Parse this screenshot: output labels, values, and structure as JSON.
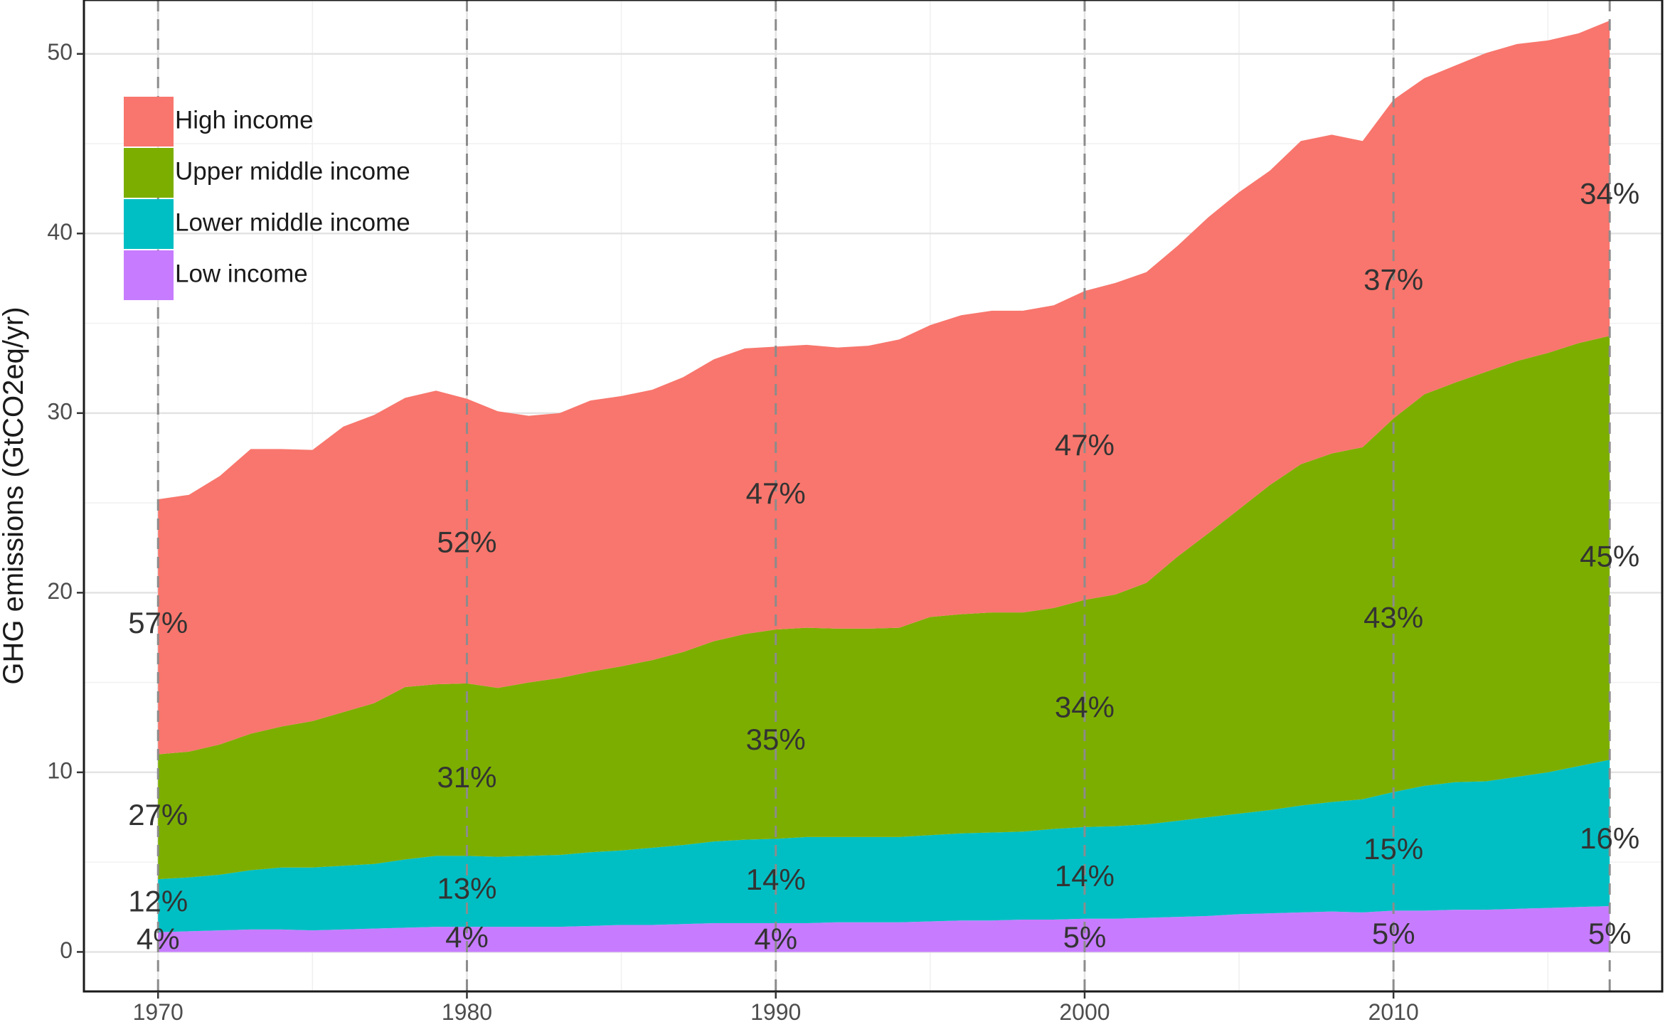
{
  "chart_data": {
    "type": "area",
    "stacked": true,
    "ylabel": "GHG emissions (GtCO2eq/yr)",
    "xlabel": "",
    "xlim": [
      1967.6,
      2018.7
    ],
    "ylim": [
      -2.2,
      53
    ],
    "x_ticks": [
      1970,
      1980,
      1990,
      2000,
      2010
    ],
    "y_ticks": [
      0,
      10,
      20,
      30,
      40,
      50
    ],
    "grid": true,
    "legend_position": "top-left",
    "x": [
      1970,
      1971,
      1972,
      1973,
      1974,
      1975,
      1976,
      1977,
      1978,
      1979,
      1980,
      1981,
      1982,
      1983,
      1984,
      1985,
      1986,
      1987,
      1988,
      1989,
      1990,
      1991,
      1992,
      1993,
      1994,
      1995,
      1996,
      1997,
      1998,
      1999,
      2000,
      2001,
      2002,
      2003,
      2004,
      2005,
      2006,
      2007,
      2008,
      2009,
      2010,
      2011,
      2012,
      2013,
      2014,
      2015,
      2016,
      2017
    ],
    "series": [
      {
        "name": "Low income",
        "color": "#C77CFF",
        "values": [
          1.1,
          1.15,
          1.2,
          1.25,
          1.25,
          1.2,
          1.25,
          1.3,
          1.35,
          1.4,
          1.4,
          1.4,
          1.4,
          1.4,
          1.45,
          1.5,
          1.5,
          1.55,
          1.6,
          1.6,
          1.6,
          1.6,
          1.65,
          1.65,
          1.65,
          1.7,
          1.75,
          1.75,
          1.8,
          1.8,
          1.85,
          1.85,
          1.9,
          1.95,
          2.0,
          2.1,
          2.15,
          2.2,
          2.25,
          2.2,
          2.3,
          2.3,
          2.35,
          2.35,
          2.4,
          2.45,
          2.5,
          2.55
        ]
      },
      {
        "name": "Lower middle income",
        "color": "#00BFC4",
        "values": [
          2.95,
          3.0,
          3.1,
          3.3,
          3.45,
          3.5,
          3.55,
          3.6,
          3.8,
          3.95,
          3.95,
          3.9,
          3.95,
          4.0,
          4.1,
          4.15,
          4.3,
          4.4,
          4.55,
          4.65,
          4.7,
          4.8,
          4.75,
          4.75,
          4.75,
          4.8,
          4.85,
          4.9,
          4.9,
          5.05,
          5.1,
          5.15,
          5.2,
          5.35,
          5.5,
          5.6,
          5.75,
          5.95,
          6.1,
          6.3,
          6.6,
          6.95,
          7.1,
          7.15,
          7.35,
          7.55,
          7.85,
          8.15
        ]
      },
      {
        "name": "Upper middle income",
        "color": "#7CAE00",
        "values": [
          6.95,
          7.0,
          7.25,
          7.6,
          7.85,
          8.15,
          8.55,
          8.95,
          9.6,
          9.55,
          9.6,
          9.4,
          9.65,
          9.85,
          10.05,
          10.25,
          10.45,
          10.75,
          11.15,
          11.45,
          11.65,
          11.65,
          11.6,
          11.6,
          11.65,
          12.15,
          12.2,
          12.25,
          12.2,
          12.3,
          12.65,
          12.9,
          13.45,
          14.7,
          15.8,
          16.95,
          18.1,
          19.0,
          19.4,
          19.6,
          20.8,
          21.8,
          22.25,
          22.8,
          23.15,
          23.35,
          23.55,
          23.6
        ]
      },
      {
        "name": "High income",
        "color": "#F8766D",
        "values": [
          14.2,
          14.3,
          14.95,
          15.85,
          15.45,
          15.1,
          15.9,
          16.05,
          16.1,
          16.35,
          15.85,
          15.4,
          14.85,
          14.75,
          15.1,
          15.05,
          15.05,
          15.3,
          15.7,
          15.9,
          15.75,
          15.75,
          15.65,
          15.75,
          16.05,
          16.25,
          16.65,
          16.8,
          16.8,
          16.85,
          17.2,
          17.35,
          17.3,
          17.3,
          17.6,
          17.65,
          17.5,
          18.0,
          17.75,
          17.05,
          17.75,
          17.6,
          17.65,
          17.75,
          17.65,
          17.4,
          17.25,
          17.55
        ]
      }
    ],
    "legend": [
      {
        "label": "High income",
        "color": "#F8766D"
      },
      {
        "label": "Upper middle income",
        "color": "#7CAE00"
      },
      {
        "label": "Lower middle income",
        "color": "#00BFC4"
      },
      {
        "label": "Low income",
        "color": "#C77CFF"
      }
    ],
    "marker_years": [
      1970,
      1980,
      1990,
      2000,
      2010,
      2017
    ],
    "annotations": [
      {
        "x": 1970,
        "y": 18.2,
        "text": "57%"
      },
      {
        "x": 1970,
        "y": 7.5,
        "text": "27%"
      },
      {
        "x": 1970,
        "y": 2.7,
        "text": "12%"
      },
      {
        "x": 1970,
        "y": 0.6,
        "text": "4%"
      },
      {
        "x": 1980,
        "y": 22.7,
        "text": "52%"
      },
      {
        "x": 1980,
        "y": 9.6,
        "text": "31%"
      },
      {
        "x": 1980,
        "y": 3.4,
        "text": "13%"
      },
      {
        "x": 1980,
        "y": 0.7,
        "text": "4%"
      },
      {
        "x": 1990,
        "y": 25.4,
        "text": "47%"
      },
      {
        "x": 1990,
        "y": 11.7,
        "text": "35%"
      },
      {
        "x": 1990,
        "y": 3.9,
        "text": "14%"
      },
      {
        "x": 1990,
        "y": 0.6,
        "text": "4%"
      },
      {
        "x": 2000,
        "y": 28.1,
        "text": "47%"
      },
      {
        "x": 2000,
        "y": 13.5,
        "text": "34%"
      },
      {
        "x": 2000,
        "y": 4.1,
        "text": "14%"
      },
      {
        "x": 2000,
        "y": 0.7,
        "text": "5%"
      },
      {
        "x": 2010,
        "y": 37.3,
        "text": "37%"
      },
      {
        "x": 2010,
        "y": 18.5,
        "text": "43%"
      },
      {
        "x": 2010,
        "y": 5.6,
        "text": "15%"
      },
      {
        "x": 2010,
        "y": 0.9,
        "text": "5%"
      },
      {
        "x": 2017,
        "y": 42.1,
        "text": "34%"
      },
      {
        "x": 2017,
        "y": 21.9,
        "text": "45%"
      },
      {
        "x": 2017,
        "y": 6.2,
        "text": "16%"
      },
      {
        "x": 2017,
        "y": 0.9,
        "text": "5%"
      }
    ]
  }
}
